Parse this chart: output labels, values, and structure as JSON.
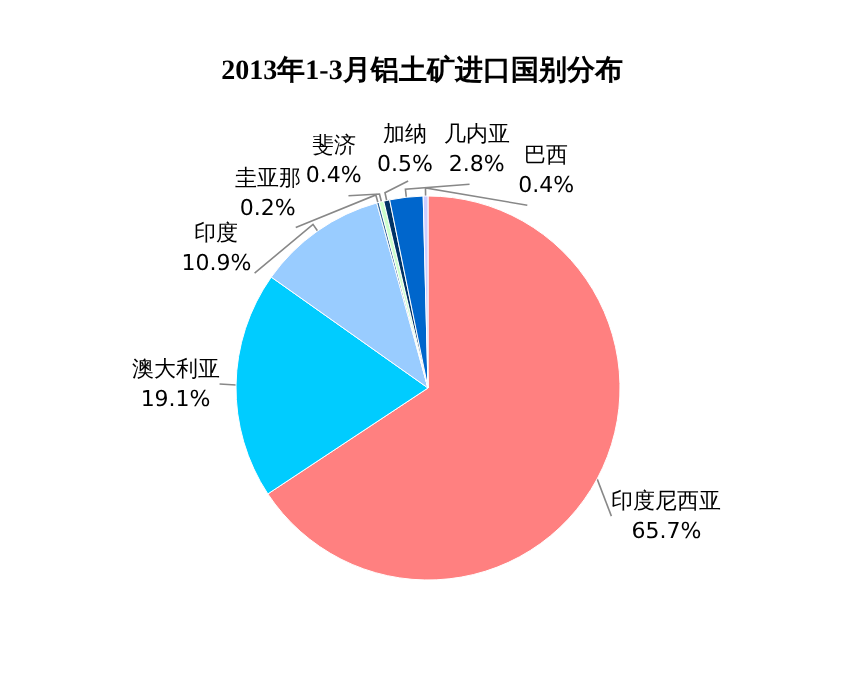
{
  "chart_data": {
    "type": "pie",
    "title": "2013年1-3月铝土矿进口国别分布",
    "categories": [
      "印度尼西亚",
      "澳大利亚",
      "印度",
      "圭亚那",
      "斐济",
      "加纳",
      "几内亚",
      "巴西"
    ],
    "values": [
      65.7,
      19.1,
      10.9,
      0.2,
      0.4,
      0.5,
      2.8,
      0.4
    ],
    "colors": [
      "#ff8080",
      "#00ccff",
      "#99ccff",
      "#336699",
      "#ccffcc",
      "#003366",
      "#0066cc",
      "#ccccff"
    ],
    "value_labels": [
      "65.7%",
      "19.1%",
      "10.9%",
      "0.2%",
      "0.4%",
      "0.5%",
      "2.8%",
      "0.4%"
    ],
    "legend": false
  }
}
